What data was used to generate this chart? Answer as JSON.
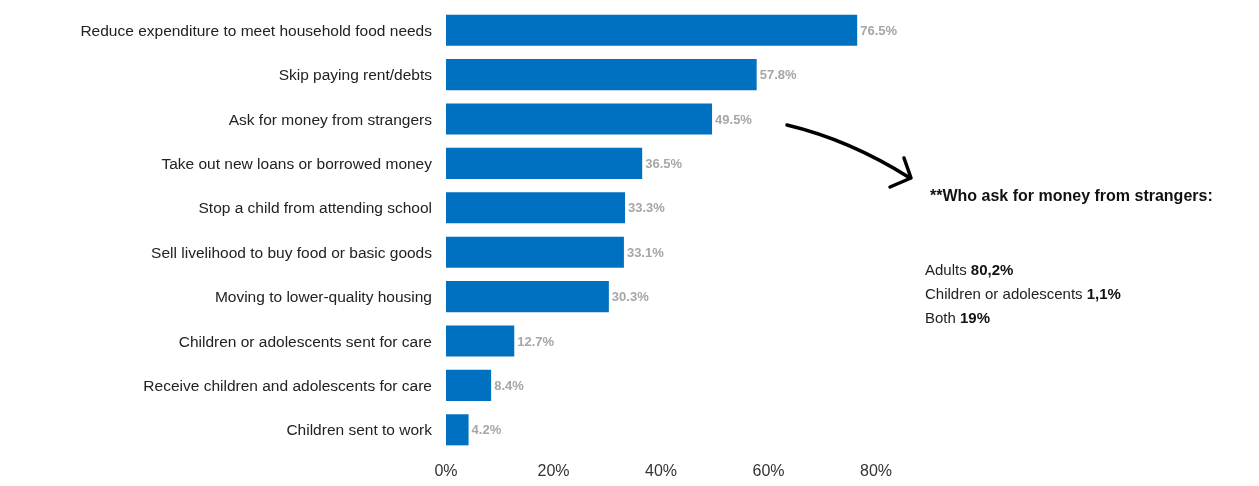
{
  "chart_data": {
    "type": "bar",
    "orientation": "horizontal",
    "categories": [
      "Reduce expenditure to meet household food needs",
      "Skip paying rent/debts",
      "Ask for money from strangers",
      "Take out new loans or borrowed money",
      "Stop a child from attending school",
      "Sell livelihood to buy food or basic goods",
      "Moving to lower-quality housing",
      "Children or adolescents sent for care",
      "Receive children and adolescents for care",
      "Children sent to work"
    ],
    "values": [
      76.5,
      57.8,
      49.5,
      36.5,
      33.3,
      33.1,
      30.3,
      12.7,
      8.4,
      4.2
    ],
    "value_labels": [
      "76.5%",
      "57.8%",
      "49.5%",
      "36.5%",
      "33.3%",
      "33.1%",
      "30.3%",
      "12.7%",
      "8.4%",
      "4.2%"
    ],
    "color": "#0070c0",
    "xlim": [
      0,
      80
    ],
    "xticks": [
      {
        "value": 0,
        "label": "0%"
      },
      {
        "value": 20,
        "label": "20%"
      },
      {
        "value": 40,
        "label": "40%"
      },
      {
        "value": 60,
        "label": "60%"
      },
      {
        "value": 80,
        "label": "80%"
      }
    ],
    "grid": false,
    "annotations": [
      "**Who ask for money from strangers:",
      "Adults 80,2%",
      "Children or adolescents 1,1%",
      "Both 19%"
    ]
  }
}
